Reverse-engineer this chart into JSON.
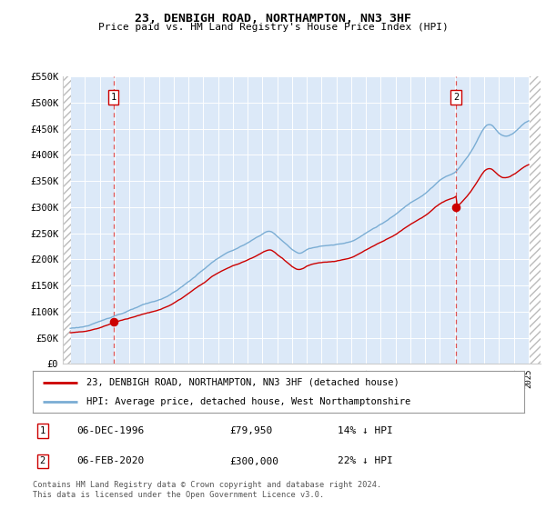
{
  "title": "23, DENBIGH ROAD, NORTHAMPTON, NN3 3HF",
  "subtitle": "Price paid vs. HM Land Registry's House Price Index (HPI)",
  "ylim": [
    0,
    550000
  ],
  "yticks": [
    0,
    50000,
    100000,
    150000,
    200000,
    250000,
    300000,
    350000,
    400000,
    450000,
    500000,
    550000
  ],
  "ytick_labels": [
    "£0",
    "£50K",
    "£100K",
    "£150K",
    "£200K",
    "£250K",
    "£300K",
    "£350K",
    "£400K",
    "£450K",
    "£500K",
    "£550K"
  ],
  "background_color": "#dce9f8",
  "hpi_color": "#7aadd4",
  "price_color": "#cc0000",
  "marker_color": "#cc0000",
  "sale1_date": 1996.92,
  "sale1_price": 79950,
  "sale2_date": 2020.09,
  "sale2_price": 300000,
  "legend_label1": "23, DENBIGH ROAD, NORTHAMPTON, NN3 3HF (detached house)",
  "legend_label2": "HPI: Average price, detached house, West Northamptonshire",
  "note1_date": "06-DEC-1996",
  "note1_price": "£79,950",
  "note1_pct": "14% ↓ HPI",
  "note2_date": "06-FEB-2020",
  "note2_price": "£300,000",
  "note2_pct": "22% ↓ HPI",
  "footer": "Contains HM Land Registry data © Crown copyright and database right 2024.\nThis data is licensed under the Open Government Licence v3.0.",
  "grid_color": "#ffffff",
  "vline_color": "#dd4444",
  "hatch_color": "#bbbbbb"
}
